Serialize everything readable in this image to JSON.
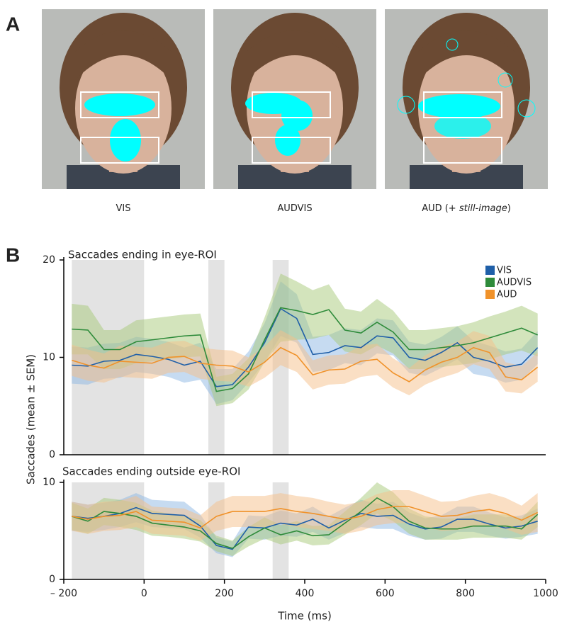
{
  "panel_labels": [
    "A",
    "B"
  ],
  "captions": [
    {
      "parts": [
        "VIS"
      ]
    },
    {
      "parts": [
        "AUDVIS"
      ]
    },
    {
      "parts": [
        "AUD (+ ",
        "still-image",
        ")"
      ]
    }
  ],
  "chart_data": [
    {
      "type": "line",
      "title": "Saccades ending in eye-ROI",
      "ylabel": "Saccades (mean ± SEM)",
      "x": [
        -180,
        -140,
        -100,
        -60,
        -20,
        20,
        60,
        100,
        140,
        180,
        220,
        260,
        300,
        340,
        380,
        420,
        460,
        500,
        540,
        580,
        620,
        660,
        700,
        740,
        780,
        820,
        860,
        900,
        940,
        980
      ],
      "xlim": [
        -200,
        1000
      ],
      "ylim": [
        0,
        20
      ],
      "yticks": [
        0,
        10,
        20
      ],
      "shaded_ranges": [
        [
          -180,
          0
        ],
        [
          160,
          200
        ],
        [
          320,
          360
        ]
      ],
      "legend": "upper right",
      "series": [
        {
          "name": "VIS",
          "color": "#1f5fa8",
          "band_color": "#8db7e3",
          "values": [
            9.2,
            9.1,
            9.6,
            9.7,
            10.3,
            10.1,
            9.8,
            9.2,
            9.6,
            7.0,
            7.2,
            9.0,
            11.5,
            15.0,
            14.0,
            10.3,
            10.5,
            11.2,
            11.0,
            12.2,
            12.0,
            10.0,
            9.7,
            10.5,
            11.5,
            10.0,
            9.6,
            9.0,
            9.3,
            11.0
          ],
          "sem": [
            1.9,
            1.9,
            1.8,
            1.8,
            1.8,
            1.8,
            1.8,
            1.8,
            1.9,
            1.8,
            1.6,
            1.6,
            2.0,
            2.8,
            2.5,
            1.8,
            1.8,
            1.8,
            1.8,
            1.8,
            1.8,
            1.6,
            1.6,
            1.6,
            1.7,
            1.7,
            1.6,
            1.6,
            1.6,
            1.7
          ]
        },
        {
          "name": "AUDVIS",
          "color": "#2e8b3a",
          "band_color": "#a8c97a",
          "values": [
            12.9,
            12.8,
            10.8,
            10.8,
            11.6,
            11.8,
            12.0,
            12.2,
            12.3,
            6.5,
            6.8,
            8.3,
            11.8,
            15.1,
            14.8,
            14.4,
            14.9,
            12.8,
            12.5,
            13.6,
            12.6,
            10.8,
            10.8,
            11.0,
            11.2,
            11.5,
            12.0,
            12.5,
            13.0,
            12.3
          ],
          "sem": [
            2.6,
            2.5,
            2.0,
            2.0,
            2.2,
            2.2,
            2.2,
            2.2,
            2.2,
            1.5,
            1.5,
            1.6,
            2.3,
            3.5,
            3.0,
            2.5,
            2.6,
            2.2,
            2.2,
            2.4,
            2.2,
            2.0,
            2.0,
            2.0,
            2.0,
            2.1,
            2.2,
            2.2,
            2.3,
            2.2
          ]
        },
        {
          "name": "AUD",
          "color": "#f0922a",
          "band_color": "#f6c08a",
          "values": [
            9.7,
            9.2,
            8.9,
            9.6,
            9.5,
            9.4,
            10.0,
            10.1,
            9.4,
            9.2,
            9.1,
            8.5,
            9.5,
            11.0,
            10.2,
            8.2,
            8.7,
            8.8,
            9.6,
            9.8,
            8.4,
            7.5,
            8.7,
            9.5,
            10.0,
            11.0,
            10.5,
            8.0,
            7.7,
            9.0
          ],
          "sem": [
            1.6,
            1.6,
            1.5,
            1.6,
            1.6,
            1.6,
            1.6,
            1.6,
            1.6,
            1.6,
            1.6,
            1.5,
            1.6,
            1.8,
            1.7,
            1.5,
            1.5,
            1.5,
            1.6,
            1.6,
            1.5,
            1.4,
            1.5,
            1.6,
            1.6,
            1.7,
            1.7,
            1.5,
            1.4,
            1.5
          ]
        }
      ]
    },
    {
      "type": "line",
      "title": "Saccades ending outside eye-ROI",
      "xlabel": "Time (ms)",
      "x": [
        -180,
        -140,
        -100,
        -60,
        -20,
        20,
        60,
        100,
        140,
        180,
        220,
        260,
        300,
        340,
        380,
        420,
        460,
        500,
        540,
        580,
        620,
        660,
        700,
        740,
        780,
        820,
        860,
        900,
        940,
        980
      ],
      "xlim": [
        -200,
        1000
      ],
      "xticks": [
        {
          "value": -200,
          "label": "– 200"
        },
        0,
        200,
        400,
        600,
        800,
        1000
      ],
      "ylim": [
        0,
        10
      ],
      "yticks": [
        0,
        10
      ],
      "shaded_ranges": [
        [
          -180,
          0
        ],
        [
          160,
          200
        ],
        [
          320,
          360
        ]
      ],
      "series": [
        {
          "color": "#1f5fa8",
          "band_color": "#8db7e3",
          "values": [
            6.5,
            6.3,
            6.5,
            6.8,
            7.4,
            6.8,
            6.7,
            6.6,
            5.5,
            3.5,
            3.1,
            5.4,
            5.3,
            5.8,
            5.6,
            6.2,
            5.3,
            6.1,
            6.8,
            6.5,
            6.6,
            5.7,
            5.2,
            5.4,
            6.2,
            6.2,
            5.7,
            5.3,
            5.5,
            6.0
          ],
          "sem": [
            1.5,
            1.4,
            1.4,
            1.4,
            1.5,
            1.4,
            1.4,
            1.4,
            1.2,
            0.8,
            0.8,
            1.2,
            1.2,
            1.3,
            1.2,
            1.3,
            1.2,
            1.3,
            1.4,
            1.3,
            1.4,
            1.2,
            1.1,
            1.2,
            1.3,
            1.3,
            1.2,
            1.1,
            1.1,
            1.3
          ]
        },
        {
          "color": "#2e8b3a",
          "band_color": "#a8c97a",
          "values": [
            6.5,
            6.0,
            7.0,
            6.8,
            6.5,
            5.8,
            5.6,
            5.4,
            5.0,
            3.7,
            3.2,
            4.4,
            5.3,
            4.6,
            5.0,
            4.5,
            4.6,
            5.8,
            7.0,
            8.4,
            7.5,
            6.0,
            5.3,
            5.2,
            5.2,
            5.5,
            5.5,
            5.5,
            5.2,
            6.7
          ],
          "sem": [
            1.4,
            1.3,
            1.4,
            1.4,
            1.4,
            1.3,
            1.2,
            1.2,
            1.1,
            0.8,
            0.8,
            1.0,
            1.1,
            1.0,
            1.0,
            1.0,
            1.0,
            1.2,
            1.4,
            1.6,
            1.5,
            1.3,
            1.2,
            1.1,
            1.1,
            1.2,
            1.2,
            1.2,
            1.1,
            1.3
          ]
        },
        {
          "color": "#f0922a",
          "band_color": "#f6c08a",
          "values": [
            6.5,
            6.2,
            6.5,
            6.6,
            7.0,
            6.1,
            6.0,
            5.9,
            5.3,
            6.5,
            7.0,
            7.0,
            7.0,
            7.3,
            7.0,
            6.8,
            6.5,
            6.2,
            6.5,
            7.2,
            7.5,
            7.5,
            7.0,
            6.5,
            6.6,
            7.0,
            7.2,
            6.8,
            6.1,
            6.9
          ],
          "sem": [
            1.5,
            1.5,
            1.5,
            1.5,
            1.6,
            1.4,
            1.4,
            1.4,
            1.3,
            1.5,
            1.6,
            1.6,
            1.6,
            1.6,
            1.6,
            1.6,
            1.5,
            1.5,
            1.5,
            1.6,
            1.7,
            1.7,
            1.6,
            1.5,
            1.5,
            1.6,
            1.7,
            1.6,
            1.5,
            2.0
          ]
        }
      ]
    }
  ]
}
